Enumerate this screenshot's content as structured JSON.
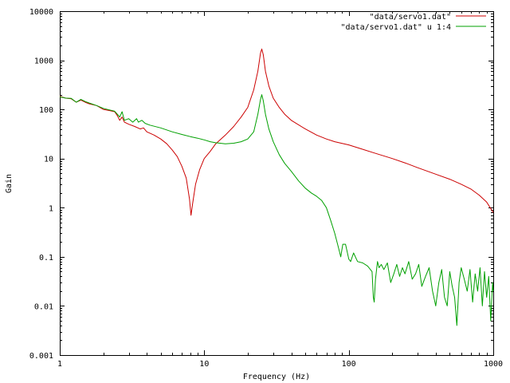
{
  "chart_data": {
    "type": "line",
    "xlabel": "Frequency (Hz)",
    "ylabel": "Gain",
    "xscale": "log",
    "yscale": "log",
    "xlim": [
      1,
      1000
    ],
    "ylim": [
      0.001,
      10000
    ],
    "grid": false,
    "legend_position": "top-right",
    "xticks": [
      {
        "value": 1,
        "label": "1"
      },
      {
        "value": 10,
        "label": "10"
      },
      {
        "value": 100,
        "label": "100"
      },
      {
        "value": 1000,
        "label": "1000"
      }
    ],
    "yticks": [
      {
        "value": 0.001,
        "label": "0.001"
      },
      {
        "value": 0.01,
        "label": "0.01"
      },
      {
        "value": 0.1,
        "label": "0.1"
      },
      {
        "value": 1,
        "label": "1"
      },
      {
        "value": 10,
        "label": "10"
      },
      {
        "value": 100,
        "label": "100"
      },
      {
        "value": 1000,
        "label": "1000"
      },
      {
        "value": 10000,
        "label": "10000"
      }
    ],
    "series": [
      {
        "name": "\"data/servo1.dat\"",
        "color": "#cc0000",
        "points": [
          [
            1,
            185
          ],
          [
            1.1,
            170
          ],
          [
            1.2,
            165
          ],
          [
            1.3,
            140
          ],
          [
            1.4,
            155
          ],
          [
            1.5,
            140
          ],
          [
            1.6,
            130
          ],
          [
            1.8,
            120
          ],
          [
            2.0,
            100
          ],
          [
            2.2,
            95
          ],
          [
            2.4,
            90
          ],
          [
            2.5,
            75
          ],
          [
            2.6,
            60
          ],
          [
            2.7,
            70
          ],
          [
            2.8,
            55
          ],
          [
            3.0,
            50
          ],
          [
            3.3,
            45
          ],
          [
            3.6,
            40
          ],
          [
            3.8,
            42
          ],
          [
            4.0,
            35
          ],
          [
            4.5,
            30
          ],
          [
            5.0,
            25
          ],
          [
            5.5,
            20
          ],
          [
            6.0,
            15
          ],
          [
            6.5,
            11
          ],
          [
            7.0,
            7
          ],
          [
            7.5,
            4
          ],
          [
            7.9,
            1.5
          ],
          [
            8.1,
            0.7
          ],
          [
            8.3,
            1.2
          ],
          [
            8.7,
            3
          ],
          [
            9.3,
            6
          ],
          [
            10,
            10
          ],
          [
            11,
            14
          ],
          [
            12,
            20
          ],
          [
            14,
            30
          ],
          [
            16,
            45
          ],
          [
            18,
            70
          ],
          [
            20,
            110
          ],
          [
            22,
            250
          ],
          [
            23.5,
            600
          ],
          [
            24.5,
            1400
          ],
          [
            25,
            1700
          ],
          [
            25.6,
            1300
          ],
          [
            26.5,
            600
          ],
          [
            28,
            300
          ],
          [
            30,
            170
          ],
          [
            33,
            110
          ],
          [
            36,
            80
          ],
          [
            40,
            60
          ],
          [
            50,
            40
          ],
          [
            60,
            30
          ],
          [
            70,
            25
          ],
          [
            80,
            22
          ],
          [
            100,
            19
          ],
          [
            120,
            16
          ],
          [
            150,
            13
          ],
          [
            200,
            10
          ],
          [
            250,
            8
          ],
          [
            300,
            6.5
          ],
          [
            400,
            4.8
          ],
          [
            500,
            3.8
          ],
          [
            600,
            3
          ],
          [
            700,
            2.4
          ],
          [
            800,
            1.8
          ],
          [
            900,
            1.3
          ],
          [
            1000,
            0.8
          ]
        ]
      },
      {
        "name": "\"data/servo1.dat\" u 1:4",
        "color": "#00a000",
        "points": [
          [
            1,
            180
          ],
          [
            1.1,
            170
          ],
          [
            1.2,
            168
          ],
          [
            1.3,
            140
          ],
          [
            1.4,
            160
          ],
          [
            1.5,
            145
          ],
          [
            1.6,
            135
          ],
          [
            1.8,
            120
          ],
          [
            2.0,
            105
          ],
          [
            2.2,
            98
          ],
          [
            2.4,
            92
          ],
          [
            2.5,
            80
          ],
          [
            2.6,
            70
          ],
          [
            2.7,
            90
          ],
          [
            2.8,
            60
          ],
          [
            3.0,
            65
          ],
          [
            3.2,
            55
          ],
          [
            3.4,
            65
          ],
          [
            3.5,
            55
          ],
          [
            3.7,
            60
          ],
          [
            3.9,
            52
          ],
          [
            4.2,
            48
          ],
          [
            5.0,
            42
          ],
          [
            6.0,
            35
          ],
          [
            7.0,
            31
          ],
          [
            8.0,
            28
          ],
          [
            9.0,
            26
          ],
          [
            10,
            24
          ],
          [
            11,
            22
          ],
          [
            12,
            21
          ],
          [
            14,
            20
          ],
          [
            16,
            20.5
          ],
          [
            18,
            22
          ],
          [
            20,
            25
          ],
          [
            22,
            35
          ],
          [
            23.5,
            80
          ],
          [
            24.5,
            160
          ],
          [
            25,
            200
          ],
          [
            25.6,
            150
          ],
          [
            26.5,
            80
          ],
          [
            28,
            40
          ],
          [
            30,
            22
          ],
          [
            33,
            12
          ],
          [
            36,
            8
          ],
          [
            40,
            5.5
          ],
          [
            45,
            3.5
          ],
          [
            50,
            2.5
          ],
          [
            55,
            2
          ],
          [
            60,
            1.7
          ],
          [
            65,
            1.4
          ],
          [
            70,
            1
          ],
          [
            75,
            0.55
          ],
          [
            80,
            0.3
          ],
          [
            85,
            0.15
          ],
          [
            88,
            0.1
          ],
          [
            91,
            0.18
          ],
          [
            95,
            0.18
          ],
          [
            100,
            0.09
          ],
          [
            103,
            0.08
          ],
          [
            108,
            0.12
          ],
          [
            115,
            0.08
          ],
          [
            125,
            0.075
          ],
          [
            135,
            0.065
          ],
          [
            145,
            0.05
          ],
          [
            148,
            0.015
          ],
          [
            150,
            0.012
          ],
          [
            153,
            0.035
          ],
          [
            158,
            0.08
          ],
          [
            162,
            0.06
          ],
          [
            168,
            0.07
          ],
          [
            175,
            0.055
          ],
          [
            185,
            0.075
          ],
          [
            195,
            0.03
          ],
          [
            205,
            0.045
          ],
          [
            215,
            0.07
          ],
          [
            225,
            0.04
          ],
          [
            235,
            0.06
          ],
          [
            245,
            0.045
          ],
          [
            260,
            0.08
          ],
          [
            275,
            0.035
          ],
          [
            290,
            0.045
          ],
          [
            305,
            0.07
          ],
          [
            320,
            0.025
          ],
          [
            340,
            0.04
          ],
          [
            360,
            0.06
          ],
          [
            380,
            0.02
          ],
          [
            400,
            0.01
          ],
          [
            420,
            0.03
          ],
          [
            440,
            0.055
          ],
          [
            460,
            0.015
          ],
          [
            480,
            0.01
          ],
          [
            500,
            0.05
          ],
          [
            520,
            0.025
          ],
          [
            540,
            0.015
          ],
          [
            560,
            0.004
          ],
          [
            580,
            0.03
          ],
          [
            600,
            0.06
          ],
          [
            630,
            0.035
          ],
          [
            660,
            0.02
          ],
          [
            690,
            0.055
          ],
          [
            720,
            0.012
          ],
          [
            750,
            0.045
          ],
          [
            780,
            0.02
          ],
          [
            810,
            0.06
          ],
          [
            840,
            0.01
          ],
          [
            870,
            0.05
          ],
          [
            900,
            0.015
          ],
          [
            930,
            0.04
          ],
          [
            960,
            0.005
          ],
          [
            990,
            0.03
          ],
          [
            1000,
            0.02
          ]
        ]
      }
    ]
  }
}
